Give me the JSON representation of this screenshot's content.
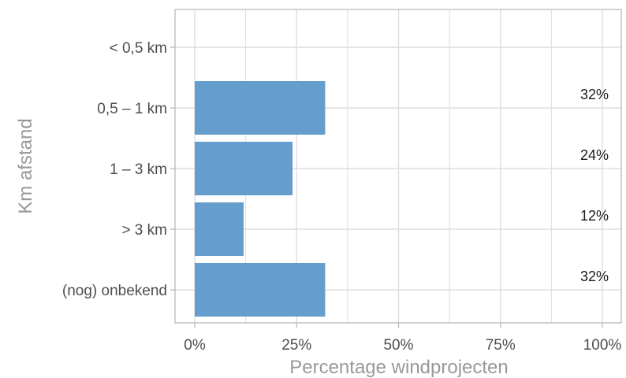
{
  "chart_data": {
    "type": "bar",
    "orientation": "horizontal",
    "categories": [
      "< 0,5 km",
      "0,5 – 1 km",
      "1 – 3 km",
      "> 3 km",
      "(nog) onbekend"
    ],
    "values": [
      0,
      32,
      24,
      12,
      32
    ],
    "data_labels": [
      "",
      "32%",
      "24%",
      "12%",
      "32%"
    ],
    "xlabel": "Percentage windprojecten",
    "ylabel": "Km afstand",
    "xlim": [
      0,
      100
    ],
    "x_ticks": [
      0,
      25,
      50,
      75,
      100
    ],
    "x_tick_labels": [
      "0%",
      "25%",
      "50%",
      "75%",
      "100%"
    ],
    "grid": true,
    "colors": {
      "bar": "#659ecd",
      "grid": "#dedede",
      "panel_border": "#b3b3b3",
      "tick": "#b3b3b3"
    }
  }
}
